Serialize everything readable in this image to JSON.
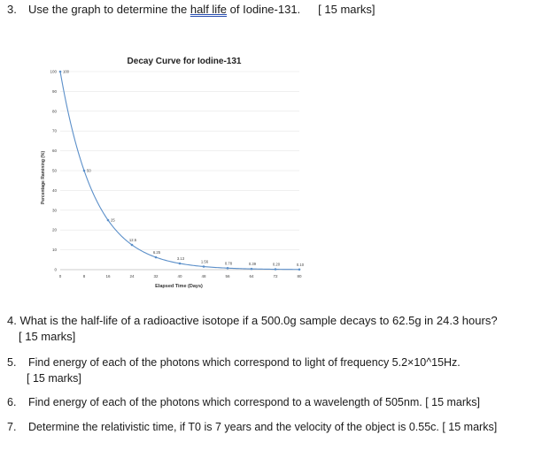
{
  "q3": {
    "number": "3.",
    "text_before": "Use the graph to determine the ",
    "link": "half life",
    "text_after": " of Iodine-131.",
    "marks": "[ 15 marks]"
  },
  "chart_data": {
    "type": "line",
    "title": "Decay Curve for Iodine-131",
    "xlabel": "Elapsed Time (Days)",
    "ylabel": "Percentage Ramining (%)",
    "x": [
      0,
      8,
      16,
      24,
      32,
      40,
      48,
      56,
      64,
      72,
      80
    ],
    "y": [
      100,
      50,
      25,
      12.5,
      6.25,
      3.13,
      1.56,
      0.78,
      0.39,
      0.2,
      0.1
    ],
    "point_labels": [
      "100",
      "50",
      "25",
      "12.5",
      "6.25",
      "3.13",
      "1.56",
      "0.78",
      "0.39",
      "0.20",
      "0.10"
    ],
    "xticks": [
      "0",
      "8",
      "16",
      "24",
      "32",
      "40",
      "48",
      "56",
      "64",
      "72",
      "80"
    ],
    "yticks": [
      "0",
      "10",
      "20",
      "30",
      "40",
      "50",
      "60",
      "70",
      "80",
      "90",
      "100"
    ],
    "xlim": [
      0,
      80
    ],
    "ylim": [
      0,
      100
    ],
    "grid": "horizontal",
    "color": "#5b8fc9"
  },
  "q4": {
    "text": "4. What is the half-life of a radioactive isotope if a 500.0g sample decays to 62.5g in 24.3 hours?",
    "marks": "[ 15 marks]"
  },
  "q5": {
    "number": "5.",
    "text": "Find energy of each of the photons which correspond to light of frequency 5.2×10^15Hz.",
    "marks": "[ 15 marks]"
  },
  "q6": {
    "number": "6.",
    "text": "Find energy of each of the photons which correspond to a wavelength of  505nm.   [ 15 marks]"
  },
  "q7": {
    "number": "7.",
    "text": "Determine the relativistic time, if T0 is 7 years and the velocity of the object is 0.55c.  [  15 marks]"
  }
}
